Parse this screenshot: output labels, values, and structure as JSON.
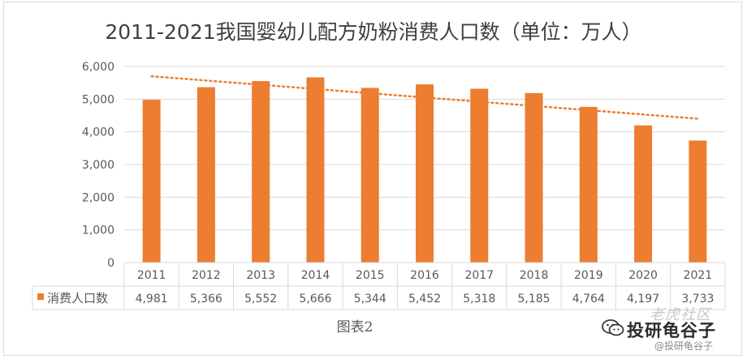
{
  "chart_data": {
    "type": "bar",
    "title": "2011-2021我国婴幼儿配方奶粉消费人口数（单位：万人）",
    "categories": [
      "2011",
      "2012",
      "2013",
      "2014",
      "2015",
      "2016",
      "2017",
      "2018",
      "2019",
      "2020",
      "2021"
    ],
    "series": [
      {
        "name": "消费人口数",
        "values": [
          4981,
          5366,
          5552,
          5666,
          5344,
          5452,
          5318,
          5185,
          4764,
          4197,
          3733
        ],
        "value_labels": [
          "4,981",
          "5,366",
          "5,552",
          "5,666",
          "5,344",
          "5,452",
          "5,318",
          "5,185",
          "4,764",
          "4,197",
          "3,733"
        ],
        "color": "#ed7d31"
      }
    ],
    "trendline": {
      "type": "linear",
      "style": "dotted",
      "color": "#ed7d31"
    },
    "ylim": [
      0,
      6000
    ],
    "yticks": [
      0,
      1000,
      2000,
      3000,
      4000,
      5000,
      6000
    ],
    "ytick_labels": [
      "0",
      "1,000",
      "2,000",
      "3,000",
      "4,000",
      "5,000",
      "6,000"
    ],
    "grid": true,
    "data_table": true,
    "caption": "图表2"
  },
  "watermark": {
    "main": "投研龟谷子",
    "top": "老虎社区",
    "bottom": "@投研龟谷子"
  }
}
